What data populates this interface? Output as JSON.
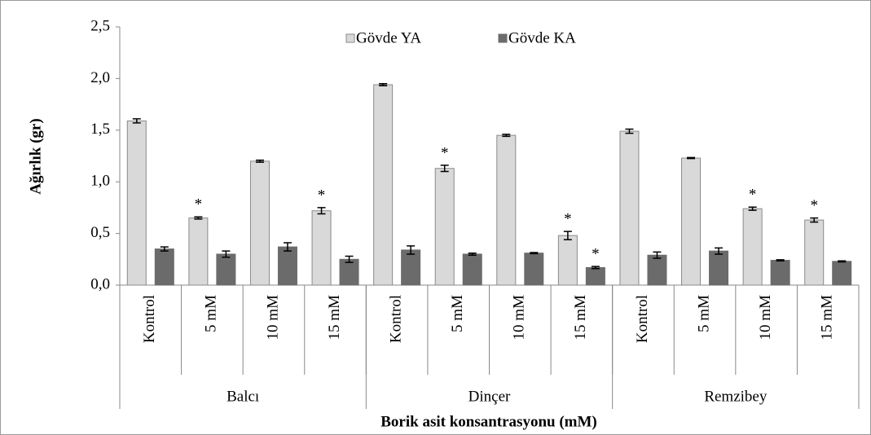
{
  "chart_data": {
    "type": "bar",
    "ylabel": "Ağırlık (gr)",
    "xlabel": "Borik asit konsantrasyonu (mM)",
    "groups": [
      {
        "name": "Balcı",
        "categories": [
          "Kontrol",
          "5 mM",
          "10 mM",
          "15 mM"
        ]
      },
      {
        "name": "Dinçer",
        "categories": [
          "Kontrol",
          "5 mM",
          "10 mM",
          "15 mM"
        ]
      },
      {
        "name": "Remzibey",
        "categories": [
          "Kontrol",
          "5 mM",
          "10 mM",
          "15 mM"
        ]
      }
    ],
    "series": [
      {
        "name": "Gövde YA",
        "color": "#d9d9d9",
        "values": [
          1.59,
          0.65,
          1.2,
          0.72,
          1.94,
          1.13,
          1.45,
          0.48,
          1.49,
          1.23,
          0.74,
          0.63
        ],
        "errors": [
          0.02,
          0.01,
          0.01,
          0.03,
          0.01,
          0.03,
          0.01,
          0.04,
          0.02,
          0.005,
          0.015,
          0.02
        ],
        "annotations": [
          null,
          "*",
          null,
          "*",
          null,
          "*",
          null,
          "*",
          null,
          null,
          "*",
          "*"
        ]
      },
      {
        "name": "Gövde KA",
        "color": "#6b6b6b",
        "values": [
          0.35,
          0.3,
          0.37,
          0.25,
          0.34,
          0.3,
          0.31,
          0.17,
          0.29,
          0.33,
          0.24,
          0.23
        ],
        "errors": [
          0.02,
          0.03,
          0.04,
          0.03,
          0.04,
          0.01,
          0.005,
          0.01,
          0.03,
          0.03,
          0.005,
          0.005
        ],
        "annotations": [
          null,
          null,
          null,
          null,
          null,
          null,
          null,
          "*",
          null,
          null,
          null,
          null
        ]
      }
    ],
    "ylim": [
      0,
      2.5
    ],
    "yticks": [
      {
        "value": 0,
        "label": "0,0"
      },
      {
        "value": 0.5,
        "label": "0,5"
      },
      {
        "value": 1,
        "label": "1,0"
      },
      {
        "value": 1.5,
        "label": "1,5"
      },
      {
        "value": 2,
        "label": "2,0"
      },
      {
        "value": 2.5,
        "label": "2,5"
      }
    ],
    "legend": "top"
  }
}
